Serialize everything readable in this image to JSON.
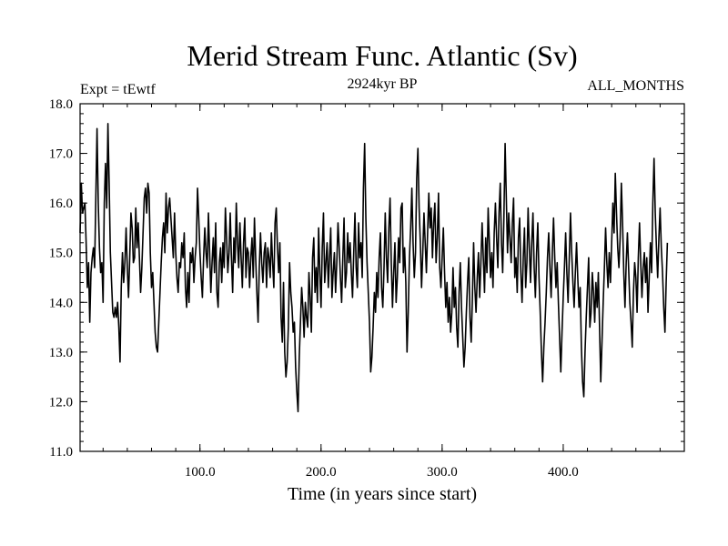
{
  "chart_data": {
    "type": "line",
    "title": "Merid Stream Func. Atlantic (Sv)",
    "subtitle_left": "Expt = tEwtf",
    "subtitle_center": "2924kyr BP",
    "subtitle_right": "ALL_MONTHS",
    "xlabel": "Time (in years since start)",
    "ylabel": "",
    "xlim": [
      1,
      500
    ],
    "ylim": [
      11.0,
      18.0
    ],
    "x_ticks": [
      100,
      200,
      300,
      400
    ],
    "x_tick_labels": [
      "100.0",
      "200.0",
      "300.0",
      "400.0"
    ],
    "y_ticks": [
      11,
      12,
      13,
      14,
      15,
      16,
      17,
      18
    ],
    "y_tick_labels": [
      "11.0",
      "12.0",
      "13.0",
      "14.0",
      "15.0",
      "16.0",
      "17.0",
      "18.0"
    ],
    "line_color": "#000000",
    "series": [
      {
        "name": "Merid Stream Func. Atlantic",
        "x_start": 1,
        "x_step": 1,
        "values": [
          15.4,
          16.4,
          15.8,
          15.9,
          16.0,
          15.2,
          14.3,
          14.8,
          13.6,
          14.6,
          14.9,
          15.1,
          14.7,
          16.1,
          17.5,
          16.0,
          15.1,
          14.6,
          14.8,
          14.0,
          16.0,
          16.8,
          15.9,
          17.6,
          16.4,
          15.0,
          14.4,
          13.8,
          13.7,
          13.9,
          13.7,
          14.0,
          13.5,
          12.8,
          14.3,
          15.0,
          14.4,
          14.8,
          15.5,
          14.7,
          14.1,
          14.9,
          15.8,
          15.5,
          14.8,
          14.9,
          15.9,
          15.1,
          15.6,
          14.9,
          14.2,
          14.7,
          15.4,
          16.1,
          16.3,
          15.8,
          16.4,
          16.2,
          15.0,
          14.3,
          14.6,
          14.0,
          13.4,
          13.1,
          13.0,
          13.6,
          14.2,
          14.8,
          15.3,
          15.6,
          15.0,
          16.2,
          15.4,
          15.9,
          16.1,
          15.7,
          15.3,
          14.9,
          15.8,
          15.0,
          14.5,
          14.2,
          14.8,
          14.7,
          15.2,
          14.9,
          15.4,
          14.3,
          13.9,
          14.6,
          14.0,
          15.0,
          14.8,
          15.1,
          14.4,
          14.9,
          15.2,
          16.3,
          15.7,
          15.0,
          14.5,
          14.1,
          14.9,
          15.5,
          15.0,
          14.7,
          15.8,
          15.0,
          14.2,
          14.8,
          15.3,
          14.6,
          15.6,
          14.2,
          13.9,
          14.8,
          15.1,
          14.4,
          15.2,
          14.7,
          15.9,
          15.3,
          14.6,
          15.0,
          15.8,
          14.9,
          14.2,
          15.3,
          14.8,
          16.0,
          15.2,
          14.7,
          15.6,
          14.9,
          14.3,
          15.2,
          15.7,
          14.5,
          15.1,
          15.0,
          14.3,
          14.9,
          15.3,
          14.5,
          15.7,
          14.9,
          14.2,
          13.6,
          14.7,
          15.4,
          14.8,
          14.4,
          15.0,
          15.2,
          14.3,
          15.1,
          14.9,
          14.5,
          15.4,
          14.8,
          14.3,
          15.6,
          15.9,
          15.1,
          14.6,
          15.2,
          13.7,
          13.2,
          14.4,
          13.0,
          12.5,
          12.8,
          13.5,
          14.8,
          14.2,
          13.9,
          13.4,
          13.6,
          12.7,
          12.2,
          11.8,
          12.9,
          13.6,
          14.3,
          13.9,
          13.3,
          14.0,
          13.7,
          13.5,
          14.6,
          14.1,
          13.4,
          14.9,
          15.3,
          14.2,
          14.7,
          14.0,
          15.5,
          14.6,
          13.9,
          15.1,
          15.8,
          14.4,
          14.8,
          15.2,
          14.3,
          14.9,
          15.5,
          14.1,
          14.6,
          15.0,
          14.2,
          14.8,
          15.6,
          15.1,
          14.5,
          14.0,
          14.9,
          15.7,
          14.3,
          14.6,
          15.4,
          14.8,
          15.2,
          14.6,
          14.1,
          15.0,
          15.8,
          14.7,
          14.3,
          15.6,
          14.9,
          15.2,
          14.5,
          16.3,
          17.2,
          15.7,
          14.8,
          14.2,
          13.6,
          12.6,
          12.9,
          13.5,
          14.2,
          13.8,
          14.6,
          14.1,
          14.9,
          15.4,
          14.3,
          13.9,
          14.7,
          15.8,
          14.9,
          14.4,
          15.5,
          16.1,
          14.8,
          13.9,
          14.6,
          15.2,
          14.0,
          14.5,
          15.3,
          14.8,
          15.9,
          16.0,
          14.6,
          15.1,
          14.4,
          13.0,
          13.8,
          14.9,
          15.5,
          16.3,
          15.2,
          14.5,
          15.0,
          16.5,
          17.1,
          15.9,
          15.2,
          14.3,
          15.0,
          15.8,
          15.2,
          14.6,
          15.4,
          16.2,
          15.5,
          15.9,
          14.9,
          15.6,
          16.0,
          14.8,
          15.3,
          16.2,
          14.7,
          14.3,
          14.9,
          15.5,
          14.6,
          13.9,
          14.4,
          13.6,
          14.1,
          13.4,
          13.8,
          14.7,
          13.9,
          14.3,
          13.5,
          13.1,
          14.2,
          14.8,
          13.9,
          13.3,
          12.7,
          13.1,
          13.8,
          14.4,
          14.9,
          13.7,
          13.2,
          14.1,
          15.2,
          14.3,
          13.8,
          14.5,
          15.0,
          14.1,
          14.8,
          15.6,
          14.9,
          14.2,
          15.3,
          14.6,
          15.9,
          15.2,
          14.5,
          15.0,
          14.3,
          15.4,
          16.0,
          15.3,
          14.7,
          15.8,
          16.4,
          15.2,
          14.6,
          15.7,
          17.2,
          16.1,
          15.0,
          15.8,
          15.3,
          14.8,
          15.6,
          16.1,
          14.5,
          14.9,
          14.2,
          15.3,
          15.7,
          14.6,
          14.0,
          14.9,
          15.5,
          14.3,
          14.8,
          15.9,
          15.1,
          14.4,
          15.2,
          15.8,
          14.7,
          14.1,
          15.0,
          15.6,
          14.5,
          13.8,
          13.0,
          12.4,
          13.1,
          13.6,
          14.2,
          14.9,
          15.4,
          14.7,
          14.1,
          15.0,
          15.7,
          14.9,
          14.3,
          14.8,
          14.0,
          13.3,
          12.6,
          13.4,
          14.1,
          14.7,
          15.4,
          14.6,
          14.0,
          14.9,
          15.8,
          15.0,
          14.4,
          13.9,
          14.6,
          15.2,
          14.5,
          13.9,
          14.3,
          13.1,
          12.4,
          12.1,
          13.0,
          13.7,
          14.3,
          14.9,
          13.5,
          13.8,
          14.6,
          14.2,
          13.6,
          14.4,
          13.9,
          14.6,
          13.5,
          12.4,
          13.2,
          14.0,
          14.7,
          15.5,
          14.8,
          14.3,
          15.0,
          14.4,
          15.2,
          16.0,
          15.4,
          16.6,
          15.8,
          15.1,
          14.7,
          15.3,
          16.4,
          15.6,
          14.6,
          13.9,
          14.8,
          15.4,
          14.7,
          14.0,
          13.6,
          13.1,
          14.2,
          14.8,
          14.5,
          13.8,
          14.9,
          15.6,
          14.8,
          14.1,
          14.7,
          15.0,
          14.4,
          14.9,
          13.8,
          14.5,
          15.2,
          14.6,
          16.0,
          16.9,
          15.8,
          15.1,
          14.5,
          15.3,
          15.9,
          15.1,
          14.6,
          13.9,
          13.4,
          14.4,
          15.2
        ]
      }
    ]
  }
}
